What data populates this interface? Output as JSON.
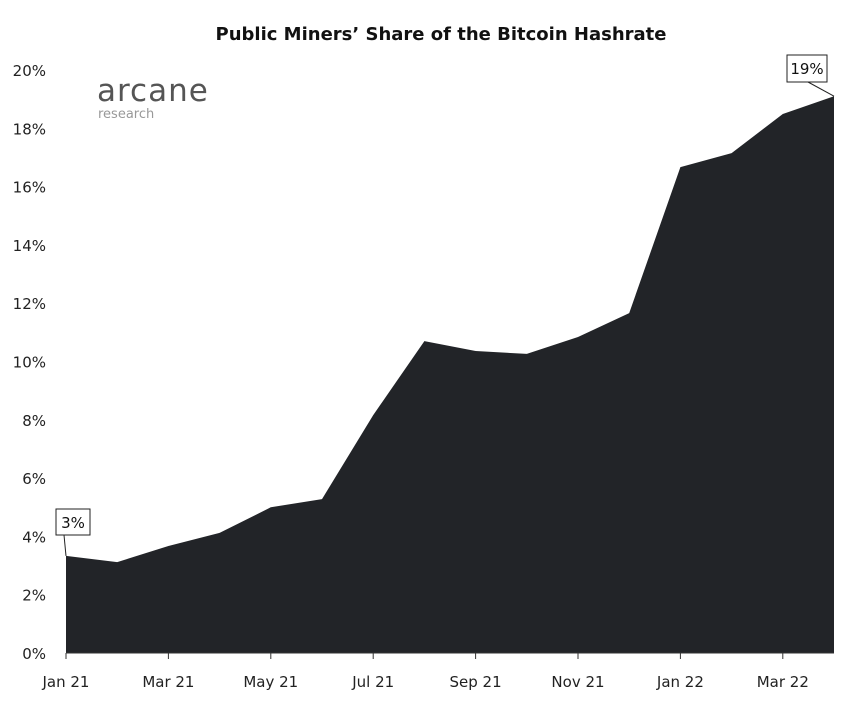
{
  "chart_data": {
    "type": "area",
    "title": "Public Miners’ Share of the Bitcoin Hashrate",
    "xlabel": "",
    "ylabel": "",
    "x": [
      "2021-01",
      "2021-02",
      "2021-03",
      "2021-04",
      "2021-05",
      "2021-06",
      "2021-07",
      "2021-08",
      "2021-09",
      "2021-10",
      "2021-11",
      "2021-12",
      "2022-01",
      "2022-02",
      "2022-03",
      "2022-04"
    ],
    "values": [
      3.33,
      3.12,
      3.67,
      4.12,
      5.0,
      5.28,
      8.16,
      10.7,
      10.36,
      10.26,
      10.84,
      11.66,
      16.67,
      17.15,
      18.49,
      19.1
    ],
    "x_tick_labels": [
      "Jan 21",
      "Mar 21",
      "May 21",
      "Jul 21",
      "Sep 21",
      "Nov 21",
      "Jan 22",
      "Mar 22"
    ],
    "y_ticks": [
      0,
      2,
      4,
      6,
      8,
      10,
      12,
      14,
      16,
      18,
      20
    ],
    "y_tick_format": "%",
    "ylim": [
      0,
      20
    ],
    "grid": false,
    "fill_color": "#222428",
    "annotations": [
      {
        "label": "3%",
        "x": "2021-01"
      },
      {
        "label": "19%",
        "x": "2022-04"
      }
    ]
  },
  "logo": {
    "name": "arcane",
    "sub": "research"
  }
}
